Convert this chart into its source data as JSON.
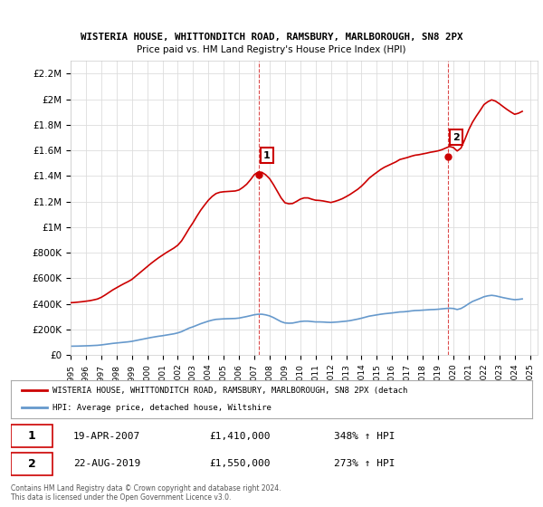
{
  "title1": "WISTERIA HOUSE, WHITTONDITCH ROAD, RAMSBURY, MARLBOROUGH, SN8 2PX",
  "title2": "Price paid vs. HM Land Registry's House Price Index (HPI)",
  "ylim": [
    0,
    2300000
  ],
  "yticks": [
    0,
    200000,
    400000,
    600000,
    800000,
    1000000,
    1200000,
    1400000,
    1600000,
    1800000,
    2000000,
    2200000
  ],
  "ytick_labels": [
    "£0",
    "£200K",
    "£400K",
    "£600K",
    "£800K",
    "£1M",
    "£1.2M",
    "£1.4M",
    "£1.6M",
    "£1.8M",
    "£2M",
    "£2.2M"
  ],
  "hpi_color": "#6699cc",
  "price_color": "#cc0000",
  "dot_color": "#cc0000",
  "annotation_box_color": "#cc0000",
  "grid_color": "#dddddd",
  "background_color": "#ffffff",
  "legend_label_price": "WISTERIA HOUSE, WHITTONDITCH ROAD, RAMSBURY, MARLBOROUGH, SN8 2PX (detach",
  "legend_label_hpi": "HPI: Average price, detached house, Wiltshire",
  "sale1_label": "1",
  "sale1_date": "19-APR-2007",
  "sale1_price": "£1,410,000",
  "sale1_hpi": "348% ↑ HPI",
  "sale1_year": 2007.3,
  "sale1_value": 1410000,
  "sale2_label": "2",
  "sale2_date": "22-AUG-2019",
  "sale2_price": "£1,550,000",
  "sale2_hpi": "273% ↑ HPI",
  "sale2_year": 2019.65,
  "sale2_value": 1550000,
  "footer": "Contains HM Land Registry data © Crown copyright and database right 2024.\nThis data is licensed under the Open Government Licence v3.0.",
  "hpi_data": {
    "years": [
      1995.0,
      1995.25,
      1995.5,
      1995.75,
      1996.0,
      1996.25,
      1996.5,
      1996.75,
      1997.0,
      1997.25,
      1997.5,
      1997.75,
      1998.0,
      1998.25,
      1998.5,
      1998.75,
      1999.0,
      1999.25,
      1999.5,
      1999.75,
      2000.0,
      2000.25,
      2000.5,
      2000.75,
      2001.0,
      2001.25,
      2001.5,
      2001.75,
      2002.0,
      2002.25,
      2002.5,
      2002.75,
      2003.0,
      2003.25,
      2003.5,
      2003.75,
      2004.0,
      2004.25,
      2004.5,
      2004.75,
      2005.0,
      2005.25,
      2005.5,
      2005.75,
      2006.0,
      2006.25,
      2006.5,
      2006.75,
      2007.0,
      2007.25,
      2007.5,
      2007.75,
      2008.0,
      2008.25,
      2008.5,
      2008.75,
      2009.0,
      2009.25,
      2009.5,
      2009.75,
      2010.0,
      2010.25,
      2010.5,
      2010.75,
      2011.0,
      2011.25,
      2011.5,
      2011.75,
      2012.0,
      2012.25,
      2012.5,
      2012.75,
      2013.0,
      2013.25,
      2013.5,
      2013.75,
      2014.0,
      2014.25,
      2014.5,
      2014.75,
      2015.0,
      2015.25,
      2015.5,
      2015.75,
      2016.0,
      2016.25,
      2016.5,
      2016.75,
      2017.0,
      2017.25,
      2017.5,
      2017.75,
      2018.0,
      2018.25,
      2018.5,
      2018.75,
      2019.0,
      2019.25,
      2019.5,
      2019.75,
      2020.0,
      2020.25,
      2020.5,
      2020.75,
      2021.0,
      2021.25,
      2021.5,
      2021.75,
      2022.0,
      2022.25,
      2022.5,
      2022.75,
      2023.0,
      2023.25,
      2023.5,
      2023.75,
      2024.0,
      2024.25,
      2024.5
    ],
    "values": [
      68000,
      68500,
      69000,
      70000,
      71000,
      72000,
      73500,
      75000,
      78000,
      82000,
      86000,
      90000,
      93000,
      96000,
      99000,
      102000,
      106000,
      112000,
      118000,
      124000,
      130000,
      136000,
      141000,
      146000,
      150000,
      155000,
      160000,
      165000,
      172000,
      182000,
      196000,
      210000,
      220000,
      232000,
      244000,
      254000,
      264000,
      272000,
      278000,
      280000,
      282000,
      283000,
      284000,
      285000,
      288000,
      294000,
      300000,
      307000,
      314000,
      318000,
      318000,
      313000,
      305000,
      292000,
      276000,
      260000,
      250000,
      248000,
      249000,
      255000,
      261000,
      264000,
      264000,
      261000,
      258000,
      258000,
      257000,
      255000,
      254000,
      256000,
      258000,
      261000,
      264000,
      268000,
      274000,
      280000,
      287000,
      295000,
      303000,
      308000,
      313000,
      318000,
      322000,
      325000,
      328000,
      332000,
      336000,
      337000,
      340000,
      344000,
      347000,
      348000,
      350000,
      352000,
      354000,
      355000,
      357000,
      360000,
      363000,
      365000,
      363000,
      355000,
      363000,
      380000,
      400000,
      418000,
      430000,
      442000,
      455000,
      462000,
      466000,
      462000,
      455000,
      448000,
      442000,
      436000,
      432000,
      434000,
      438000
    ]
  },
  "price_data": {
    "years": [
      1995.0,
      1995.25,
      1995.5,
      1995.75,
      1996.0,
      1996.25,
      1996.5,
      1996.75,
      1997.0,
      1997.25,
      1997.5,
      1997.75,
      1998.0,
      1998.25,
      1998.5,
      1998.75,
      1999.0,
      1999.25,
      1999.5,
      1999.75,
      2000.0,
      2000.25,
      2000.5,
      2000.75,
      2001.0,
      2001.25,
      2001.5,
      2001.75,
      2002.0,
      2002.25,
      2002.5,
      2002.75,
      2003.0,
      2003.25,
      2003.5,
      2003.75,
      2004.0,
      2004.25,
      2004.5,
      2004.75,
      2005.0,
      2005.25,
      2005.5,
      2005.75,
      2006.0,
      2006.25,
      2006.5,
      2006.75,
      2007.0,
      2007.25,
      2007.5,
      2007.75,
      2008.0,
      2008.25,
      2008.5,
      2008.75,
      2009.0,
      2009.25,
      2009.5,
      2009.75,
      2010.0,
      2010.25,
      2010.5,
      2010.75,
      2011.0,
      2011.25,
      2011.5,
      2011.75,
      2012.0,
      2012.25,
      2012.5,
      2012.75,
      2013.0,
      2013.25,
      2013.5,
      2013.75,
      2014.0,
      2014.25,
      2014.5,
      2014.75,
      2015.0,
      2015.25,
      2015.5,
      2015.75,
      2016.0,
      2016.25,
      2016.5,
      2016.75,
      2017.0,
      2017.25,
      2017.5,
      2017.75,
      2018.0,
      2018.25,
      2018.5,
      2018.75,
      2019.0,
      2019.25,
      2019.5,
      2019.75,
      2020.0,
      2020.25,
      2020.5,
      2020.75,
      2021.0,
      2021.25,
      2021.5,
      2021.75,
      2022.0,
      2022.25,
      2022.5,
      2022.75,
      2023.0,
      2023.25,
      2023.5,
      2023.75,
      2024.0,
      2024.25,
      2024.5
    ],
    "values": [
      408000,
      410000,
      413000,
      416000,
      420000,
      424000,
      430000,
      437000,
      450000,
      468000,
      488000,
      508000,
      525000,
      542000,
      558000,
      573000,
      590000,
      615000,
      640000,
      665000,
      690000,
      715000,
      738000,
      760000,
      780000,
      800000,
      818000,
      836000,
      858000,
      892000,
      940000,
      990000,
      1035000,
      1085000,
      1132000,
      1172000,
      1210000,
      1240000,
      1262000,
      1272000,
      1276000,
      1278000,
      1280000,
      1282000,
      1290000,
      1310000,
      1335000,
      1370000,
      1410000,
      1430000,
      1428000,
      1408000,
      1378000,
      1332000,
      1280000,
      1228000,
      1190000,
      1182000,
      1184000,
      1200000,
      1218000,
      1228000,
      1228000,
      1218000,
      1210000,
      1208000,
      1204000,
      1198000,
      1192000,
      1200000,
      1210000,
      1222000,
      1238000,
      1255000,
      1275000,
      1295000,
      1320000,
      1350000,
      1382000,
      1406000,
      1428000,
      1450000,
      1468000,
      1482000,
      1496000,
      1510000,
      1528000,
      1536000,
      1544000,
      1554000,
      1562000,
      1566000,
      1572000,
      1578000,
      1585000,
      1590000,
      1596000,
      1605000,
      1618000,
      1630000,
      1622000,
      1595000,
      1618000,
      1685000,
      1760000,
      1820000,
      1868000,
      1912000,
      1958000,
      1980000,
      1995000,
      1985000,
      1965000,
      1942000,
      1920000,
      1900000,
      1882000,
      1890000,
      1905000
    ]
  }
}
